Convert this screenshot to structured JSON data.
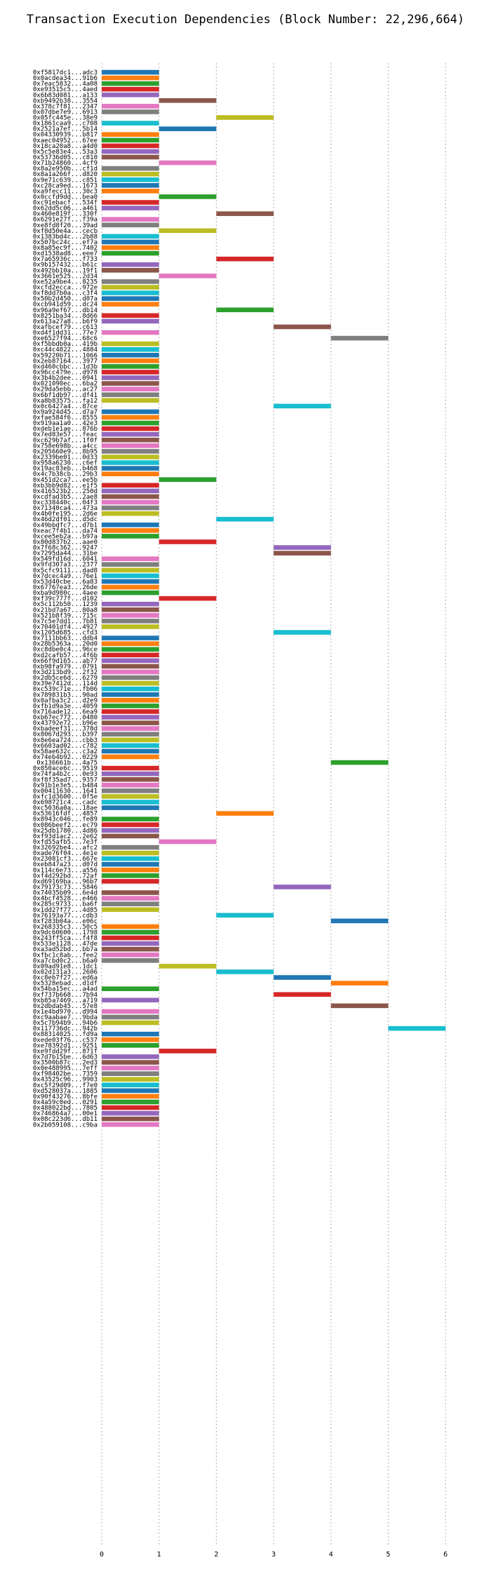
{
  "chart_data": {
    "type": "bar",
    "orientation": "horizontal",
    "stacked_range": true,
    "title": "Transaction Execution Dependencies (Block Number: 22,296,664)",
    "xlabel": "",
    "ylabel": "",
    "xlim": [
      0,
      6
    ],
    "xticks": [
      "0",
      "1",
      "2",
      "3",
      "4",
      "5",
      "6"
    ],
    "grid": "vertical dotted",
    "legend": "none",
    "colors": [
      "#1f77b4",
      "#ff7f0e",
      "#2ca02c",
      "#d62728",
      "#9467bd",
      "#8c564b",
      "#e377c2",
      "#7f7f7f",
      "#bcbd22",
      "#17becf"
    ],
    "transactions": [
      [
        "0xf5817dc1...adc3",
        0
      ],
      [
        "0x0acdea34...91b6",
        0
      ],
      [
        "0x7eac5832...4a08",
        0
      ],
      [
        "0xe93515c5...4aed",
        0
      ],
      [
        "0x6b83d081...a133",
        0
      ],
      [
        "0xb9492b38...3554",
        1
      ],
      [
        "0x378c7f81...2347",
        0
      ],
      [
        "0x07dbe7e9...6913",
        0
      ],
      [
        "0x05fc445e...38e9",
        2
      ],
      [
        "0x1861caa9...c708",
        0
      ],
      [
        "0x2521a7ef...5b14",
        1
      ],
      [
        "0x04330939...b817",
        0
      ],
      [
        "0xaec04952...67ee",
        0
      ],
      [
        "0x18ca20a8...a4d0",
        0
      ],
      [
        "0x5c5e83e4...53a3",
        0
      ],
      [
        "0x53736d05...c810",
        0
      ],
      [
        "0x71b24860...4cf9",
        1
      ],
      [
        "0x8a2e950b...cf1d",
        0
      ],
      [
        "0x8a1a266f...d820",
        0
      ],
      [
        "0x9e71c639...c851",
        0
      ],
      [
        "0xc28ca9ed...1673",
        0
      ],
      [
        "0xa9fecc11...30c3",
        0
      ],
      [
        "0x0ccfd9dd...bea0",
        1
      ],
      [
        "0xc91ebacf...534f",
        0
      ],
      [
        "0x62dd5c06...a461",
        0
      ],
      [
        "0x460e819f...330f",
        2
      ],
      [
        "0x6291e27f...f39a",
        0
      ],
      [
        "0xe8fd8f20...39ad",
        0
      ],
      [
        "0xf8d50e4a...cecb",
        1
      ],
      [
        "0x1383bd4c...2b88",
        0
      ],
      [
        "0x507bc24c...ef7a",
        0
      ],
      [
        "0x8a85ec9f...7402",
        0
      ],
      [
        "0xd1538ad8...eee7",
        0
      ],
      [
        "0x7a65936c...f733",
        2
      ],
      [
        "0x9b157432...b61c",
        0
      ],
      [
        "0x492bb10a...19f1",
        0
      ],
      [
        "0x3661e525...2d34",
        1
      ],
      [
        "0xe52a9be4...8235",
        0
      ],
      [
        "0xcfd2ecca...972e",
        0
      ],
      [
        "0xf8dd7b0a...c3f4",
        0
      ],
      [
        "0x50b2d450...d07a",
        0
      ],
      [
        "0xcb941d59...dc24",
        0
      ],
      [
        "0x96a9ef67...db14",
        2
      ],
      [
        "0x8251ba34...8d66",
        0
      ],
      [
        "0x613a27a8...b6f9",
        0
      ],
      [
        "0xafbcef79...c613",
        3
      ],
      [
        "0xd4f1dd31...77e7",
        0
      ],
      [
        "0xe6527f94...68c6",
        4
      ],
      [
        "0xf5bbdb0a...419b",
        0
      ],
      [
        "0xc44c4822...4884",
        0
      ],
      [
        "0x59220b71...1066",
        0
      ],
      [
        "0x2eb87164...3977",
        0
      ],
      [
        "0xd460cbbc...1d3b",
        0
      ],
      [
        "0x96cc479e...d978",
        0
      ],
      [
        "0x3b4b2dee...0941",
        0
      ],
      [
        "0x021090ec...6ba2",
        0
      ],
      [
        "0x29da5ebb...ac27",
        0
      ],
      [
        "0x6bf1db97...df41",
        0
      ],
      [
        "0xa8b83575...fa12",
        0
      ],
      [
        "0x0c6427a4...87ce",
        3
      ],
      [
        "0x9a924d45...d7a7",
        0
      ],
      [
        "0xfae584f6...8555",
        0
      ],
      [
        "0x919aa1a0...42e3",
        0
      ],
      [
        "0xdeb1e1ae...876b",
        0
      ],
      [
        "0x7ed83e57...feac",
        0
      ],
      [
        "0xc629b7af...1f0f",
        0
      ],
      [
        "0x758e698b...a4cc",
        0
      ],
      [
        "0x205660e9...8b95",
        0
      ],
      [
        "0x2339be01...0d33",
        0
      ],
      [
        "0x958a6230...c6ef",
        0
      ],
      [
        "0x19ac83eb...b468",
        0
      ],
      [
        "0x4c7b38cb...29b3",
        0
      ],
      [
        "0x451d2ca7...ee5b",
        1
      ],
      [
        "0xb3bb9d82...e1f5",
        0
      ],
      [
        "0x416523b2...250d",
        0
      ],
      [
        "0xcdfad3b5...2ae8",
        0
      ],
      [
        "0xc338440c...04f3",
        0
      ],
      [
        "0x71340ca4...473a",
        0
      ],
      [
        "0x4b0fe195...2d6e",
        0
      ],
      [
        "0x46d2df01...d5dc",
        2
      ],
      [
        "0x49bbdfc7...d7b1",
        0
      ],
      [
        "0xeac7f4b1...da74",
        0
      ],
      [
        "0xcee5eb2a...b97a",
        0
      ],
      [
        "0x80d837b2...aae0",
        1
      ],
      [
        "0x7f68c362...9247",
        3
      ],
      [
        "0x7295da44...31be",
        3
      ],
      [
        "0x549fd16d...6041",
        0
      ],
      [
        "0x9fd307a3...2377",
        0
      ],
      [
        "0x5cfc9111...dad8",
        0
      ],
      [
        "0x7dcec4a9...76e1",
        0
      ],
      [
        "0x53d40cbe...6a83",
        0
      ],
      [
        "0x67767ea3...26de",
        0
      ],
      [
        "0xba9d980c...4aee",
        0
      ],
      [
        "0xf39c777f...d102",
        1
      ],
      [
        "0x5c112b50...1239",
        0
      ],
      [
        "0x21bd7a67...80a8",
        0
      ],
      [
        "0x521b8f39...715c",
        0
      ],
      [
        "0x7c5e7dd1...7b81",
        0
      ],
      [
        "0x70401df4...4927",
        0
      ],
      [
        "0x1205d685...cfd3",
        3
      ],
      [
        "0x7111bb63...ddb4",
        0
      ],
      [
        "0x28b5363a...20d0",
        0
      ],
      [
        "0xc8dbe0c4...96ce",
        0
      ],
      [
        "0xd2cafb57...4f6b",
        0
      ],
      [
        "0x66f9d165...ab77",
        0
      ],
      [
        "0xb98fa979...0791",
        0
      ],
      [
        "0x3d213bd9...2f32",
        0
      ],
      [
        "0x2db5ce6d...6279",
        0
      ],
      [
        "0x39e7412d...114d",
        0
      ],
      [
        "0xc539c71e...fb06",
        0
      ],
      [
        "0x789831b3...90ad",
        0
      ],
      [
        "0x0afba3c2...d2e9",
        0
      ],
      [
        "0xfb1d9a3e...4059",
        0
      ],
      [
        "0x716ade12...6ea9",
        0
      ],
      [
        "0xb67ec772...0480",
        0
      ],
      [
        "0x43792e72...b96e",
        0
      ],
      [
        "0xbadeef31...378d",
        0
      ],
      [
        "0x8067d293...b397",
        0
      ],
      [
        "0x8e6ea724...cbb3",
        0
      ],
      [
        "0x6603ad02...c782",
        0
      ],
      [
        "0x58ae632c...c3a2",
        0
      ],
      [
        "0x74eb4b92...0229",
        0
      ],
      [
        "0x136661b...4a75",
        4
      ],
      [
        "0x050ace6c...9519",
        0
      ],
      [
        "0x74fa4b2c...0e93",
        0
      ],
      [
        "0xf8f35ad7...9357",
        0
      ],
      [
        "0x91b1e3e5...b484",
        0
      ],
      [
        "0x00411630...1641",
        0
      ],
      [
        "0xfc1d3600...0f5e",
        0
      ],
      [
        "0x698721c4...cadc",
        0
      ],
      [
        "0xc5036a0a...18ae",
        0
      ],
      [
        "0x53616fdf...4857",
        2
      ],
      [
        "0x8943c046...fe89",
        0
      ],
      [
        "0x086beef2...ec79",
        0
      ],
      [
        "0x25db1780...4d86",
        0
      ],
      [
        "0xf93d1ac2...2e62",
        0
      ],
      [
        "0xfd55afb5...7e3f",
        1
      ],
      [
        "0x32692be4...afc2",
        0
      ],
      [
        "0xade76f04...4e1e",
        0
      ],
      [
        "0x23081cf3...667e",
        0
      ],
      [
        "0xeb847a23...d07d",
        0
      ],
      [
        "0x114c6e73...a556",
        0
      ],
      [
        "0xf4d292bd...72af",
        0
      ],
      [
        "0xd69169ba...96b7",
        0
      ],
      [
        "0x79173c73...5846",
        3
      ],
      [
        "0x74035b09...6e4d",
        0
      ],
      [
        "0x4bcf4528...e466",
        0
      ],
      [
        "0x285c9733...ba6f",
        0
      ],
      [
        "0x1dd27f77...4d85",
        0
      ],
      [
        "0x76193a77...cdb3",
        2
      ],
      [
        "0xf283b04a...e06c",
        4
      ],
      [
        "0x268335c3...50c5",
        0
      ],
      [
        "0x9dc60600...1798",
        0
      ],
      [
        "0x243ff5ca...f4f8",
        0
      ],
      [
        "0x533e1128...47de",
        0
      ],
      [
        "0xa3ad52bd...bb7a",
        0
      ],
      [
        "0xfbc1c8ab...fee2",
        0
      ],
      [
        "0xa7cbd0c2...b6a0",
        0
      ],
      [
        "0x09ad91e8...1dc1",
        1
      ],
      [
        "0x02d131a3...2606",
        2
      ],
      [
        "0xc8eb7f27...ed6a",
        3
      ],
      [
        "0x5328ebad...d1df",
        4
      ],
      [
        "0x54ba15ec...a4ad",
        0
      ],
      [
        "0xf737b668...7b94",
        3
      ],
      [
        "0xb85a7469...a719",
        0
      ],
      [
        "0x2dbdab45...57e8",
        4
      ],
      [
        "0x1e4bd970...d994",
        0
      ],
      [
        "0xc9aabae7...9bda",
        0
      ],
      [
        "0x5c7b94b9...94b6",
        0
      ],
      [
        "0x117736dc...942b",
        5
      ],
      [
        "0x88314025...fd9a",
        0
      ],
      [
        "0xede03f76...c537",
        0
      ],
      [
        "0xe78392d1...9251",
        0
      ],
      [
        "0xe9fdd29f...871f",
        1
      ],
      [
        "0x7d7b15be...6d63",
        0
      ],
      [
        "0x3500b87c...2ed3",
        0
      ],
      [
        "0x0e488995...7eff",
        0
      ],
      [
        "0xf98402be...7359",
        0
      ],
      [
        "0x43525c96...9903",
        0
      ],
      [
        "0xc5f29d09...f7e0",
        0
      ],
      [
        "0xd528037a...1885",
        0
      ],
      [
        "0x90f43276...8bfe",
        0
      ],
      [
        "0x4a59c0ed...0291",
        0
      ],
      [
        "0x488022bd...7805",
        0
      ],
      [
        "0x746864a7...00e1",
        0
      ],
      [
        "0x08c223d6...db11",
        0
      ],
      [
        "0x2b059108...c9ba",
        0
      ]
    ]
  }
}
